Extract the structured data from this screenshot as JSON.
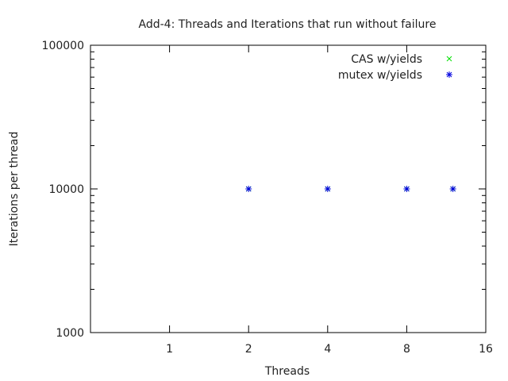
{
  "chart_data": {
    "type": "scatter",
    "title": "Add-4: Threads and Iterations that run without failure",
    "xlabel": "Threads",
    "ylabel": "Iterations per thread",
    "x_scale": "log2",
    "y_scale": "log10",
    "xlim": [
      0.5,
      16
    ],
    "ylim": [
      1000,
      100000
    ],
    "x_ticks": [
      1,
      2,
      4,
      8,
      16
    ],
    "x_tick_labels": [
      "1",
      "2",
      "4",
      "8",
      "16"
    ],
    "y_ticks": [
      1000,
      10000,
      100000
    ],
    "y_tick_labels": [
      "1000",
      "10000",
      "100000"
    ],
    "legend_position": "top-right",
    "grid": false,
    "series": [
      {
        "name": "CAS w/yields",
        "marker": "x",
        "color": "#00e000",
        "points": [
          {
            "x": 2,
            "y": 10000
          },
          {
            "x": 4,
            "y": 10000
          },
          {
            "x": 8,
            "y": 10000
          },
          {
            "x": 12,
            "y": 10000
          }
        ]
      },
      {
        "name": "mutex w/yields",
        "marker": "*",
        "color": "#0000e0",
        "points": [
          {
            "x": 2,
            "y": 10000
          },
          {
            "x": 4,
            "y": 10000
          },
          {
            "x": 8,
            "y": 10000
          },
          {
            "x": 12,
            "y": 10000
          }
        ]
      }
    ]
  }
}
